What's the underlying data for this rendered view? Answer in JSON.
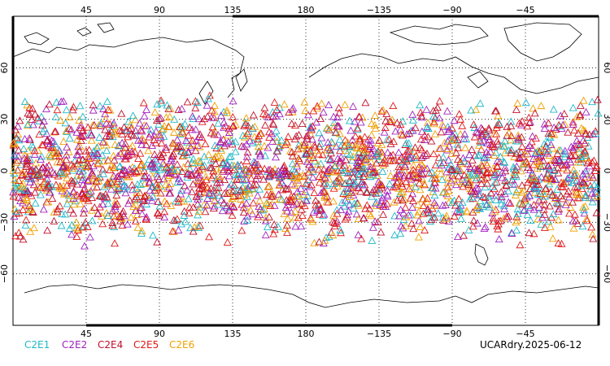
{
  "map": {
    "lon_labels": [
      "45",
      "90",
      "135",
      "180",
      "−135",
      "−90",
      "−45"
    ],
    "lat_labels": [
      "60",
      "30",
      "0",
      "−30",
      "−60"
    ],
    "colors": {
      "C2E1": "#1fb8c8",
      "C2E2": "#a020c0",
      "C2E4": "#c0102c",
      "C2E5": "#e01818",
      "C2E6": "#f0a000"
    },
    "observation_band_lat": [
      -45,
      45
    ]
  },
  "legend": [
    {
      "label": "C2E1",
      "color": "#1fb8c8"
    },
    {
      "label": "C2E2",
      "color": "#a020c0"
    },
    {
      "label": "C2E4",
      "color": "#c0102c"
    },
    {
      "label": "C2E5",
      "color": "#e01818"
    },
    {
      "label": "C2E6",
      "color": "#f0a000"
    }
  ],
  "footer": {
    "stamp": "UCARdry.2025-06-12"
  }
}
